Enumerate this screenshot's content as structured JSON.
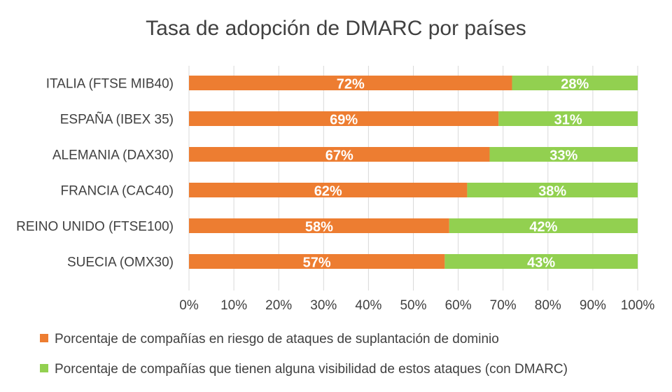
{
  "chart_data": {
    "type": "bar",
    "orientation": "horizontal",
    "stacked": "percent",
    "title": "Tasa de adopción de DMARC por países",
    "categories": [
      "ITALIA (FTSE MIB40)",
      "ESPAÑA (IBEX 35)",
      "ALEMANIA (DAX30)",
      "FRANCIA (CAC40)",
      "REINO UNIDO (FTSE100)",
      "SUECIA (OMX30)"
    ],
    "series": [
      {
        "name": "Porcentaje de compañías en riesgo de ataques de suplantación de dominio",
        "color": "#ed7d31",
        "values": [
          72,
          69,
          67,
          62,
          58,
          57
        ],
        "labels": [
          "72%",
          "69%",
          "67%",
          "62%",
          "58%",
          "57%"
        ]
      },
      {
        "name": "Porcentaje de compañías que tienen alguna visibilidad de estos ataques (con DMARC)",
        "color": "#92d050",
        "values": [
          28,
          31,
          33,
          38,
          42,
          43
        ],
        "labels": [
          "28%",
          "31%",
          "33%",
          "38%",
          "42%",
          "43%"
        ]
      }
    ],
    "xlim": [
      0,
      100
    ],
    "xticks": [
      "0%",
      "10%",
      "20%",
      "30%",
      "40%",
      "50%",
      "60%",
      "70%",
      "80%",
      "90%",
      "100%"
    ],
    "grid": "vertical",
    "legend": "bottom"
  }
}
